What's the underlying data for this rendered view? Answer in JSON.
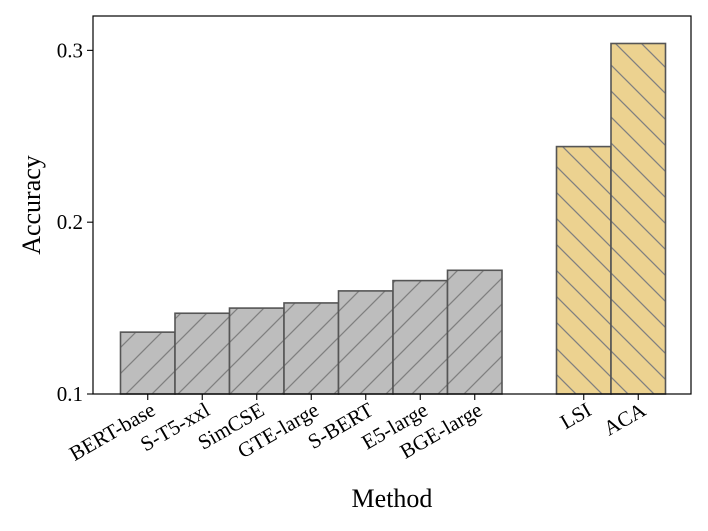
{
  "chart_data": {
    "type": "bar",
    "xlabel": "Method",
    "ylabel": "Accuracy",
    "ylim": [
      0.1,
      0.32
    ],
    "yticks": [
      0.1,
      0.2,
      0.3
    ],
    "ytick_labels": [
      "0.1",
      "0.2",
      "0.3"
    ],
    "grid": false,
    "groups": [
      {
        "color": "#bdbdbd",
        "hatch": "//",
        "bars": [
          {
            "category": "BERT-base",
            "value": 0.136
          },
          {
            "category": "S-T5-xxl",
            "value": 0.147
          },
          {
            "category": "SimCSE",
            "value": 0.15
          },
          {
            "category": "GTE-large",
            "value": 0.153
          },
          {
            "category": "S-BERT",
            "value": 0.16
          },
          {
            "category": "E5-large",
            "value": 0.166
          },
          {
            "category": "BGE-large",
            "value": 0.172
          }
        ]
      },
      {
        "color": "#ecd290",
        "hatch": "\\\\",
        "bars": [
          {
            "category": "LSI",
            "value": 0.244
          },
          {
            "category": "ACA",
            "value": 0.304
          }
        ]
      }
    ]
  }
}
